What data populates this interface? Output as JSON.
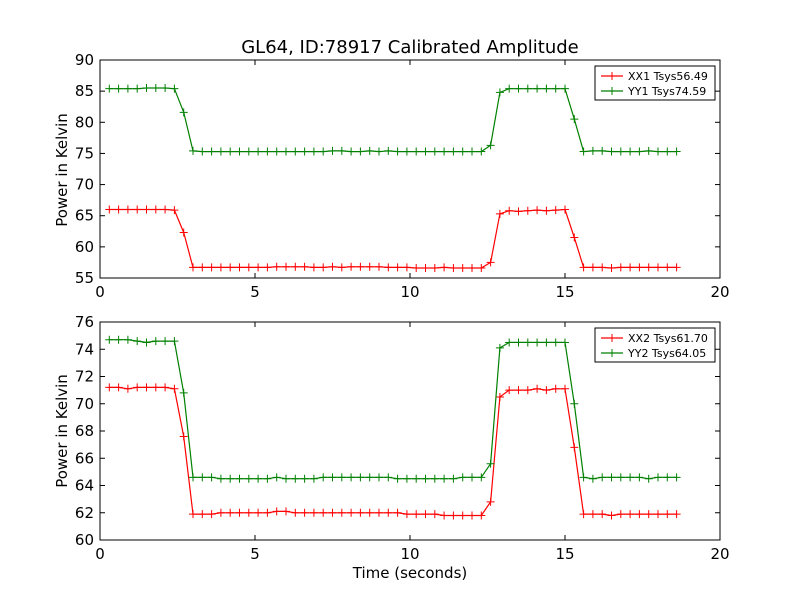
{
  "chart_data": [
    {
      "type": "line",
      "title": "GL64, ID:78917 Calibrated Amplitude",
      "xlabel": "",
      "ylabel": "Power in Kelvin",
      "xlim": [
        0,
        20
      ],
      "ylim": [
        55,
        90
      ],
      "xticks": [
        0,
        5,
        10,
        15,
        20
      ],
      "yticks": [
        55,
        60,
        65,
        70,
        75,
        80,
        85,
        90
      ],
      "grid": false,
      "legend_position": "top-right",
      "x": [
        0.3,
        0.6,
        0.9,
        1.2,
        1.5,
        1.8,
        2.1,
        2.4,
        2.7,
        3.0,
        3.3,
        3.6,
        3.9,
        4.2,
        4.5,
        4.8,
        5.1,
        5.4,
        5.7,
        6.0,
        6.3,
        6.6,
        6.9,
        7.2,
        7.5,
        7.8,
        8.1,
        8.4,
        8.7,
        9.0,
        9.3,
        9.6,
        9.9,
        10.2,
        10.5,
        10.8,
        11.1,
        11.4,
        11.7,
        12.0,
        12.3,
        12.6,
        12.9,
        13.2,
        13.5,
        13.8,
        14.1,
        14.4,
        14.7,
        15.0,
        15.3,
        15.6,
        15.9,
        16.2,
        16.5,
        16.8,
        17.1,
        17.4,
        17.7,
        18.0,
        18.3,
        18.6
      ],
      "series": [
        {
          "name": "XX1 Tsys56.49",
          "color": "#ff0000",
          "values": [
            66.0,
            66.0,
            66.0,
            66.0,
            66.0,
            66.0,
            66.0,
            65.9,
            62.3,
            56.7,
            56.7,
            56.7,
            56.7,
            56.7,
            56.7,
            56.7,
            56.7,
            56.7,
            56.8,
            56.8,
            56.8,
            56.8,
            56.7,
            56.7,
            56.8,
            56.7,
            56.8,
            56.8,
            56.8,
            56.8,
            56.7,
            56.7,
            56.7,
            56.6,
            56.6,
            56.6,
            56.7,
            56.6,
            56.6,
            56.6,
            56.6,
            57.5,
            65.3,
            65.8,
            65.7,
            65.8,
            65.9,
            65.8,
            65.9,
            66.0,
            61.5,
            56.7,
            56.7,
            56.7,
            56.6,
            56.7,
            56.7,
            56.7,
            56.7,
            56.7,
            56.7,
            56.7
          ]
        },
        {
          "name": "YY1 Tsys74.59",
          "color": "#008000",
          "values": [
            85.4,
            85.4,
            85.4,
            85.4,
            85.5,
            85.5,
            85.5,
            85.4,
            81.6,
            75.4,
            75.3,
            75.3,
            75.3,
            75.3,
            75.3,
            75.3,
            75.3,
            75.3,
            75.3,
            75.3,
            75.3,
            75.3,
            75.3,
            75.3,
            75.4,
            75.4,
            75.3,
            75.3,
            75.4,
            75.3,
            75.4,
            75.3,
            75.3,
            75.3,
            75.3,
            75.3,
            75.3,
            75.3,
            75.3,
            75.3,
            75.3,
            76.3,
            84.8,
            85.4,
            85.4,
            85.4,
            85.4,
            85.4,
            85.4,
            85.4,
            80.5,
            75.3,
            75.4,
            75.4,
            75.3,
            75.3,
            75.3,
            75.3,
            75.4,
            75.3,
            75.3,
            75.3
          ]
        }
      ]
    },
    {
      "type": "line",
      "title": "",
      "xlabel": "Time (seconds)",
      "ylabel": "Power in Kelvin",
      "xlim": [
        0,
        20
      ],
      "ylim": [
        60,
        76
      ],
      "xticks": [
        0,
        5,
        10,
        15,
        20
      ],
      "yticks": [
        60,
        62,
        64,
        66,
        68,
        70,
        72,
        74,
        76
      ],
      "grid": false,
      "legend_position": "top-right",
      "x": [
        0.3,
        0.6,
        0.9,
        1.2,
        1.5,
        1.8,
        2.1,
        2.4,
        2.7,
        3.0,
        3.3,
        3.6,
        3.9,
        4.2,
        4.5,
        4.8,
        5.1,
        5.4,
        5.7,
        6.0,
        6.3,
        6.6,
        6.9,
        7.2,
        7.5,
        7.8,
        8.1,
        8.4,
        8.7,
        9.0,
        9.3,
        9.6,
        9.9,
        10.2,
        10.5,
        10.8,
        11.1,
        11.4,
        11.7,
        12.0,
        12.3,
        12.6,
        12.9,
        13.2,
        13.5,
        13.8,
        14.1,
        14.4,
        14.7,
        15.0,
        15.3,
        15.6,
        15.9,
        16.2,
        16.5,
        16.8,
        17.1,
        17.4,
        17.7,
        18.0,
        18.3,
        18.6
      ],
      "series": [
        {
          "name": "XX2 Tsys61.70",
          "color": "#ff0000",
          "values": [
            71.2,
            71.2,
            71.1,
            71.2,
            71.2,
            71.2,
            71.2,
            71.1,
            67.6,
            61.9,
            61.9,
            61.9,
            62.0,
            62.0,
            62.0,
            62.0,
            62.0,
            62.0,
            62.1,
            62.1,
            62.0,
            62.0,
            62.0,
            62.0,
            62.0,
            62.0,
            62.0,
            62.0,
            62.0,
            62.0,
            62.0,
            62.0,
            61.9,
            61.9,
            61.9,
            61.9,
            61.8,
            61.8,
            61.8,
            61.8,
            61.8,
            62.8,
            70.5,
            71.0,
            71.0,
            71.0,
            71.1,
            71.0,
            71.1,
            71.1,
            66.8,
            61.9,
            61.9,
            61.9,
            61.8,
            61.9,
            61.9,
            61.9,
            61.9,
            61.9,
            61.9,
            61.9
          ]
        },
        {
          "name": "YY2 Tsys64.05",
          "color": "#008000",
          "values": [
            74.7,
            74.7,
            74.7,
            74.6,
            74.5,
            74.6,
            74.6,
            74.6,
            70.8,
            64.6,
            64.6,
            64.6,
            64.5,
            64.5,
            64.5,
            64.5,
            64.5,
            64.5,
            64.6,
            64.5,
            64.5,
            64.5,
            64.5,
            64.6,
            64.6,
            64.6,
            64.6,
            64.6,
            64.6,
            64.6,
            64.6,
            64.5,
            64.5,
            64.5,
            64.5,
            64.5,
            64.5,
            64.5,
            64.6,
            64.6,
            64.6,
            65.6,
            74.1,
            74.5,
            74.5,
            74.5,
            74.5,
            74.5,
            74.5,
            74.5,
            70.0,
            64.6,
            64.5,
            64.6,
            64.6,
            64.6,
            64.6,
            64.6,
            64.5,
            64.6,
            64.6,
            64.6
          ]
        }
      ]
    }
  ]
}
